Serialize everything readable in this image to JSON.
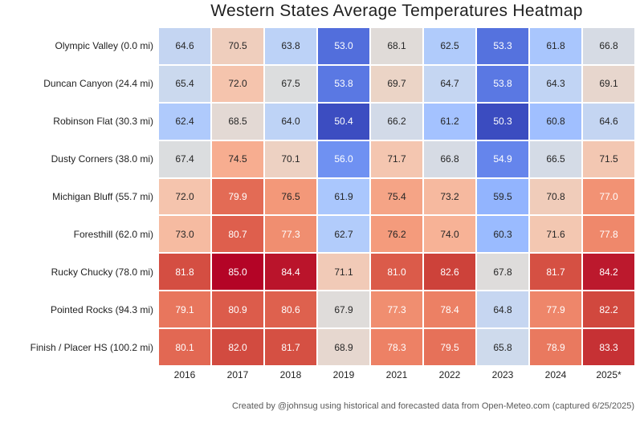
{
  "chart_data": {
    "type": "heatmap",
    "title": "Western States Average Temperatures Heatmap",
    "caption": "Created by @johnsug using historical and forecasted data from Open-Meteo.com (captured 6/25/2025)",
    "rows": [
      "Olympic Valley (0.0 mi)",
      "Duncan Canyon (24.4 mi)",
      "Robinson Flat (30.3 mi)",
      "Dusty Corners (38.0 mi)",
      "Michigan Bluff (55.7 mi)",
      "Foresthill (62.0 mi)",
      "Rucky Chucky (78.0 mi)",
      "Pointed Rocks (94.3 mi)",
      "Finish / Placer HS (100.2 mi)"
    ],
    "columns": [
      "2016",
      "2017",
      "2018",
      "2019",
      "2021",
      "2022",
      "2023",
      "2024",
      "2025*"
    ],
    "values": [
      [
        64.6,
        70.5,
        63.8,
        53.0,
        68.1,
        62.5,
        53.3,
        61.8,
        66.8
      ],
      [
        65.4,
        72.0,
        67.5,
        53.8,
        69.7,
        64.7,
        53.8,
        64.3,
        69.1
      ],
      [
        62.4,
        68.5,
        64.0,
        50.4,
        66.2,
        61.2,
        50.3,
        60.8,
        64.6
      ],
      [
        67.4,
        74.5,
        70.1,
        56.0,
        71.7,
        66.8,
        54.9,
        66.5,
        71.5
      ],
      [
        72.0,
        79.9,
        76.5,
        61.9,
        75.4,
        73.2,
        59.5,
        70.8,
        77.0
      ],
      [
        73.0,
        80.7,
        77.3,
        62.7,
        76.2,
        74.0,
        60.3,
        71.6,
        77.8
      ],
      [
        81.8,
        85.0,
        84.4,
        71.1,
        81.0,
        82.6,
        67.8,
        81.7,
        84.2
      ],
      [
        79.1,
        80.9,
        80.6,
        67.9,
        77.3,
        78.4,
        64.8,
        77.9,
        82.2
      ],
      [
        80.1,
        82.0,
        81.7,
        68.9,
        78.3,
        79.5,
        65.8,
        78.9,
        83.3
      ]
    ],
    "value_decimals": 1,
    "vmin": 50.3,
    "vmax": 85.0,
    "colormap": "coolwarm",
    "colormap_stops": [
      "#3b4cc0",
      "#4d68d7",
      "#6282ea",
      "#779af7",
      "#8db0fe",
      "#a3c2ff",
      "#b8d0f9",
      "#ccd9ee",
      "#dddddd",
      "#ecd3c5",
      "#f5c4ad",
      "#f7b194",
      "#f49a7b",
      "#ec7f63",
      "#de604d",
      "#cb3e38",
      "#b40426"
    ],
    "annotation_text_dark": "#262626",
    "annotation_text_light": "#ffffff",
    "cell_gap_color": "#ffffff",
    "legend": "none"
  }
}
